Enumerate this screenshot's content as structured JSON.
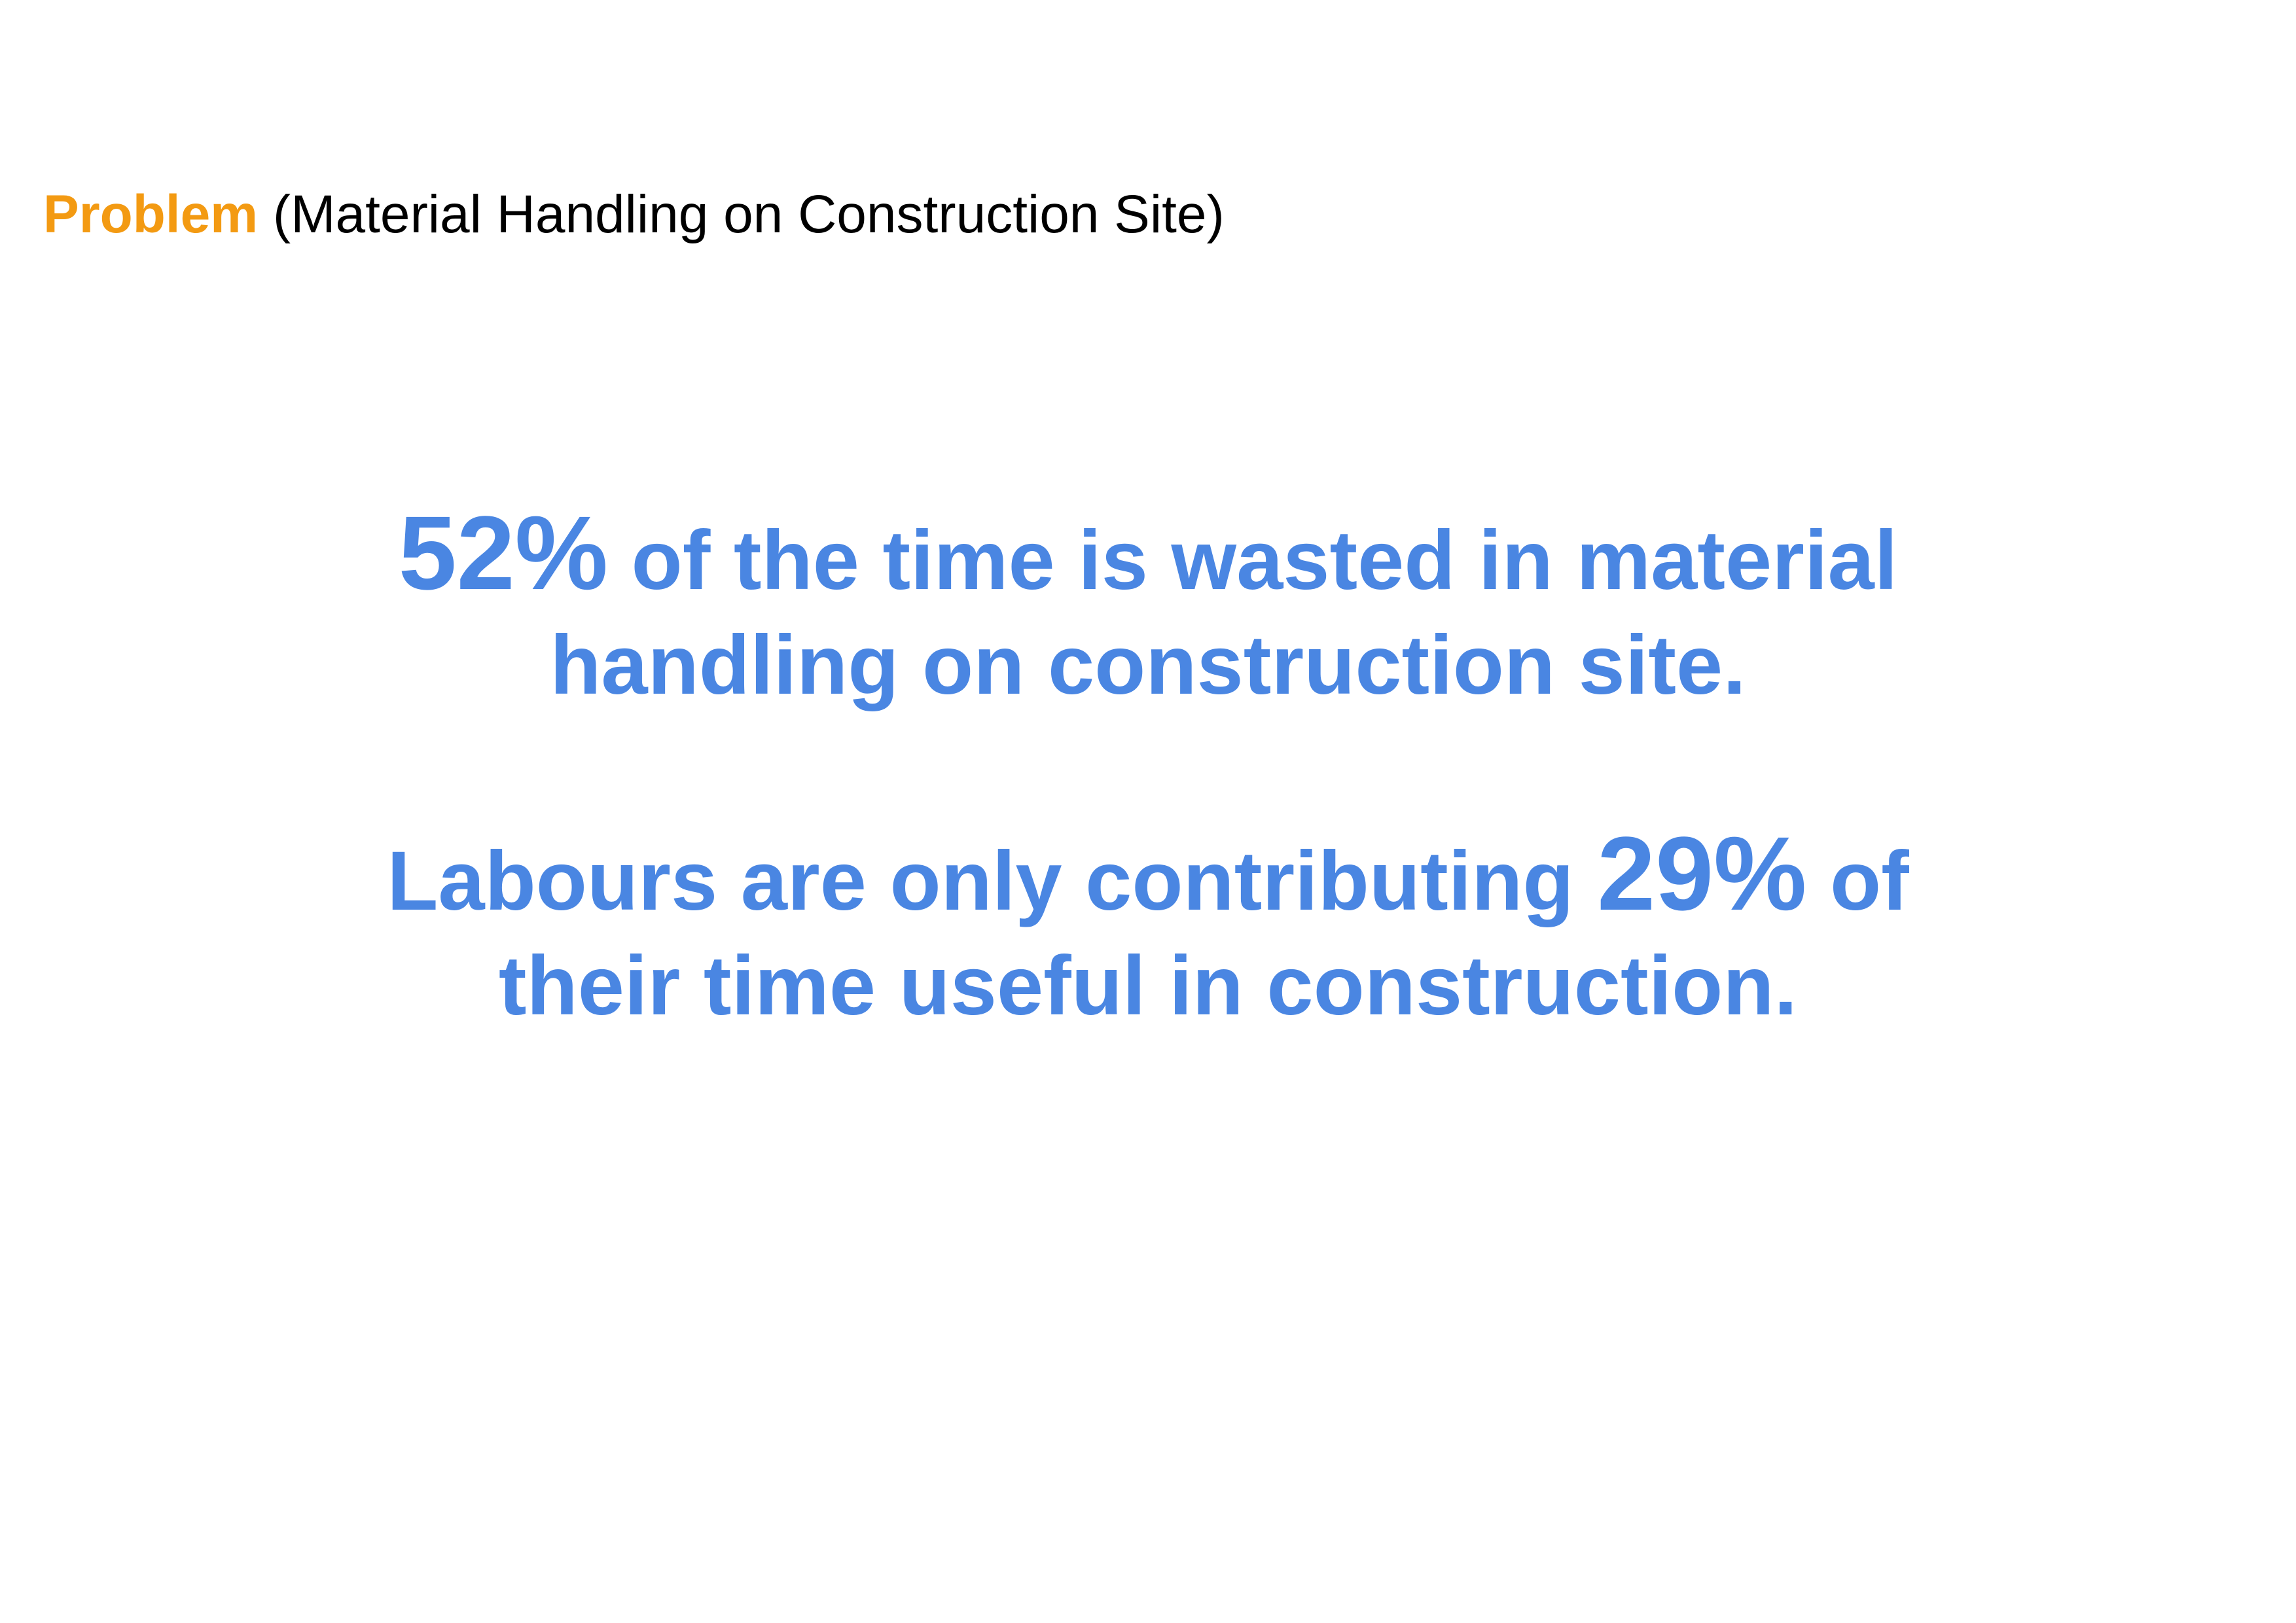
{
  "header": {
    "keyword": "Problem",
    "subtitle": "(Material Handling on Construction Site)"
  },
  "statement_1": {
    "highlight": "52%",
    "line1_rest": "of the time is wasted in material",
    "line2": "handling on construction site."
  },
  "statement_2": {
    "line1_start": "Labours are only contributing",
    "highlight": "29%",
    "line1_end": "of",
    "line2": "their time useful in construction."
  },
  "colors": {
    "keyword": "#f39a12",
    "body_text": "#4a86e2",
    "header_text": "#000000",
    "background": "#ffffff"
  }
}
